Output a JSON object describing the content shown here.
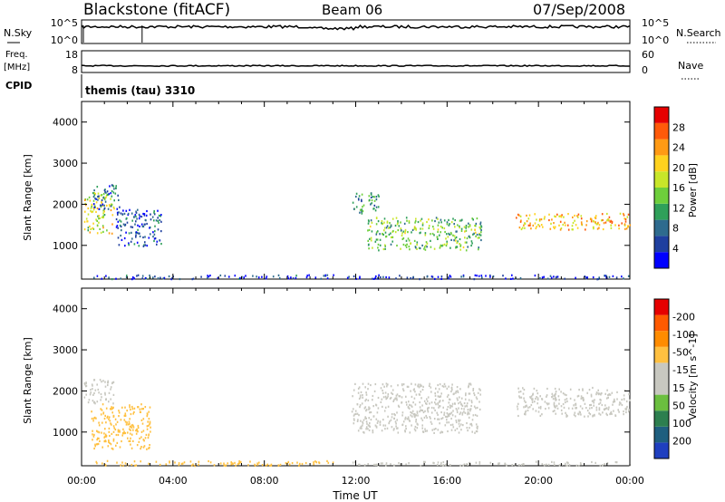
{
  "header": {
    "station": "Blackstone (fitACF)",
    "beam": "Beam 06",
    "date": "07/Sep/2008"
  },
  "param_panels": {
    "nsky_label": "N.Sky",
    "nsky_ticks": [
      "10^5",
      "10^0"
    ],
    "nsearch_label": "N.Search",
    "nsearch_ticks": [
      "10^5",
      "10^0"
    ],
    "freq_label": "Freq.",
    "freq_unit": "[MHz]",
    "freq_ticks": [
      "18",
      "8"
    ],
    "nave_label": "Nave",
    "nave_ticks": [
      "60",
      "0"
    ],
    "cpid_label": "CPID",
    "cpid_value": "themis (tau) 3310"
  },
  "colors": {
    "power_scale": [
      "#0000ff",
      "#1f3f9f",
      "#2e6b8e",
      "#2fa05a",
      "#6ecf3c",
      "#c8e629",
      "#ffd21e",
      "#ff9a14",
      "#ff5a0a",
      "#e60000"
    ],
    "velocity_scale": [
      "#1f3fbf",
      "#1f5f7f",
      "#2d7f4f",
      "#6bbf3f",
      "#c8c8c0",
      "#c8c8c0",
      "#ffc040",
      "#ff8c00",
      "#ff5a00",
      "#e60000"
    ]
  },
  "chart_data": [
    {
      "type": "heatmap",
      "panel": "power",
      "xlabel": "Time UT",
      "ylabel": "Slant Range [km]",
      "x_ticks": [
        "00:00",
        "04:00",
        "08:00",
        "12:00",
        "16:00",
        "20:00",
        "00:00"
      ],
      "x_range_hours": [
        0,
        24
      ],
      "y_ticks": [
        "1000",
        "2000",
        "3000",
        "4000"
      ],
      "y_range_km": [
        180,
        4500
      ],
      "colorbar_label": "Power [dB]",
      "colorbar_ticks": [
        "4",
        "8",
        "12",
        "16",
        "20",
        "24",
        "28"
      ],
      "colorbar_range": [
        0,
        32
      ],
      "scatter_regions": [
        {
          "t_start": 0.1,
          "t_end": 1.4,
          "r_min": 1300,
          "r_max": 2300,
          "value": 18
        },
        {
          "t_start": 0.5,
          "t_end": 1.7,
          "r_min": 1900,
          "r_max": 2500,
          "value": 8
        },
        {
          "t_start": 1.5,
          "t_end": 3.5,
          "r_min": 1000,
          "r_max": 1900,
          "value": 6
        },
        {
          "t_start": 0.5,
          "t_end": 11.0,
          "r_min": 200,
          "r_max": 300,
          "value": 5
        },
        {
          "t_start": 11.8,
          "t_end": 13.0,
          "r_min": 1800,
          "r_max": 2300,
          "value": 10
        },
        {
          "t_start": 12.5,
          "t_end": 17.5,
          "r_min": 900,
          "r_max": 1700,
          "value": 14
        },
        {
          "t_start": 19.0,
          "t_end": 24.0,
          "r_min": 1400,
          "r_max": 1800,
          "value": 22
        },
        {
          "t_start": 11.5,
          "t_end": 24.0,
          "r_min": 200,
          "r_max": 300,
          "value": 4
        }
      ]
    },
    {
      "type": "heatmap",
      "panel": "velocity",
      "xlabel": "Time UT",
      "ylabel": "Slant Range [km]",
      "x_ticks": [
        "00:00",
        "04:00",
        "08:00",
        "12:00",
        "16:00",
        "20:00",
        "00:00"
      ],
      "x_range_hours": [
        0,
        24
      ],
      "y_ticks": [
        "1000",
        "2000",
        "3000",
        "4000"
      ],
      "y_range_km": [
        180,
        4500
      ],
      "colorbar_label": "Velocity [m s^-1]",
      "colorbar_ticks": [
        "200",
        "100",
        "50",
        "15",
        "-15",
        "-50",
        "-100",
        "-200"
      ],
      "scatter_regions": [
        {
          "t_start": 0.1,
          "t_end": 1.4,
          "r_min": 1700,
          "r_max": 2300,
          "value": 0
        },
        {
          "t_start": 0.4,
          "t_end": 3.0,
          "r_min": 600,
          "r_max": 1700,
          "value": -70
        },
        {
          "t_start": 0.5,
          "t_end": 11.0,
          "r_min": 200,
          "r_max": 320,
          "value": -60
        },
        {
          "t_start": 11.8,
          "t_end": 17.5,
          "r_min": 1000,
          "r_max": 2200,
          "value": 0
        },
        {
          "t_start": 19.0,
          "t_end": 24.0,
          "r_min": 1400,
          "r_max": 2100,
          "value": 0
        },
        {
          "t_start": 11.5,
          "t_end": 24.0,
          "r_min": 200,
          "r_max": 300,
          "value": 20
        }
      ]
    }
  ]
}
